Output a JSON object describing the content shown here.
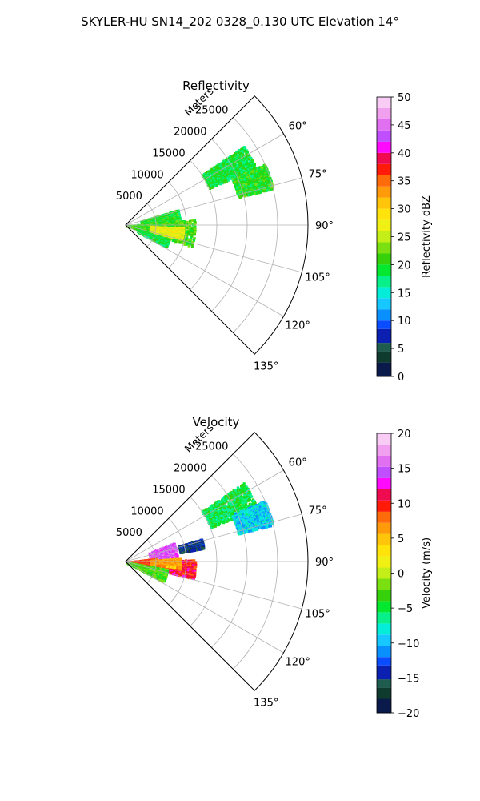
{
  "figure": {
    "suptitle": "SKYLER-HU  SN14_202  0328_0.130 UTC Elevation 14°"
  },
  "chart_data": [
    {
      "type": "heatmap",
      "subtype": "polar-sector (PPI radar scan)",
      "title": "Reflectivity",
      "radial_axis_label": "Meters",
      "radial_ticks": [
        "5000",
        "10000",
        "15000",
        "20000",
        "25000"
      ],
      "radial_tick_values": [
        5000,
        10000,
        15000,
        20000,
        25000
      ],
      "radial_max": 30000,
      "angle_ticks": [
        "60°",
        "75°",
        "90°",
        "105°",
        "120°",
        "135°"
      ],
      "angle_tick_values": [
        60,
        75,
        90,
        105,
        120,
        135
      ],
      "angle_range_deg": [
        45,
        135
      ],
      "grid": true,
      "colorbar": {
        "label": "Reflectivity dBZ",
        "vmin": 0,
        "vmax": 50,
        "ticks": [
          "0",
          "5",
          "10",
          "15",
          "20",
          "25",
          "30",
          "35",
          "40",
          "45",
          "50"
        ],
        "tick_values": [
          0,
          5,
          10,
          15,
          20,
          25,
          30,
          35,
          40,
          45,
          50
        ],
        "colormap_stops": [
          [
            0.0,
            "#0a1a4a"
          ],
          [
            0.05,
            "#0f3b2e"
          ],
          [
            0.09,
            "#1f5c50"
          ],
          [
            0.12,
            "#0b1fb0"
          ],
          [
            0.17,
            "#0a4cff"
          ],
          [
            0.2,
            "#0a8fff"
          ],
          [
            0.24,
            "#16c8ff"
          ],
          [
            0.28,
            "#05ecd8"
          ],
          [
            0.32,
            "#08f08a"
          ],
          [
            0.36,
            "#05e830"
          ],
          [
            0.4,
            "#35d10a"
          ],
          [
            0.44,
            "#7ae012"
          ],
          [
            0.48,
            "#c4ee18"
          ],
          [
            0.52,
            "#f0f015"
          ],
          [
            0.56,
            "#ffe30a"
          ],
          [
            0.6,
            "#ffc50a"
          ],
          [
            0.64,
            "#ff9a0a"
          ],
          [
            0.68,
            "#ff6a0a"
          ],
          [
            0.72,
            "#ff1a0a"
          ],
          [
            0.76,
            "#f00a50"
          ],
          [
            0.8,
            "#ff0aff"
          ],
          [
            0.84,
            "#c050ff"
          ],
          [
            0.88,
            "#e070f0"
          ],
          [
            0.92,
            "#f0a0ee"
          ],
          [
            0.96,
            "#f8ccf5"
          ],
          [
            1.0,
            "#fbeefb"
          ]
        ]
      },
      "echo_regions": [
        {
          "az": [
            73,
            85
          ],
          "r": [
            2500,
            9000
          ],
          "value": 20
        },
        {
          "az": [
            85,
            108
          ],
          "r": [
            0,
            11500
          ],
          "value": 21
        },
        {
          "az": [
            92,
            104
          ],
          "r": [
            4000,
            9500
          ],
          "value": 27
        },
        {
          "az": [
            108,
            118
          ],
          "r": [
            2000,
            7500
          ],
          "value": 19
        },
        {
          "az": [
            56,
            66
          ],
          "r": [
            15000,
            23500
          ],
          "value": 19
        },
        {
          "az": [
            66,
            76
          ],
          "r": [
            19000,
            25000
          ],
          "value": 20
        }
      ]
    },
    {
      "type": "heatmap",
      "subtype": "polar-sector (PPI radar scan)",
      "title": "Velocity",
      "radial_axis_label": "Meters",
      "radial_ticks": [
        "5000",
        "10000",
        "15000",
        "20000",
        "25000"
      ],
      "radial_tick_values": [
        5000,
        10000,
        15000,
        20000,
        25000
      ],
      "radial_max": 30000,
      "angle_ticks": [
        "60°",
        "75°",
        "90°",
        "105°",
        "120°",
        "135°"
      ],
      "angle_tick_values": [
        60,
        75,
        90,
        105,
        120,
        135
      ],
      "angle_range_deg": [
        45,
        135
      ],
      "grid": true,
      "colorbar": {
        "label": "Velocity (m/s)",
        "vmin": -20,
        "vmax": 20,
        "ticks": [
          "−20",
          "−15",
          "−10",
          "−5",
          "0",
          "5",
          "10",
          "15",
          "20"
        ],
        "tick_values": [
          -20,
          -15,
          -10,
          -5,
          0,
          5,
          10,
          15,
          20
        ],
        "colormap_stops": [
          [
            0.0,
            "#0a1a4a"
          ],
          [
            0.05,
            "#0f3b2e"
          ],
          [
            0.09,
            "#1f5c50"
          ],
          [
            0.12,
            "#0b1fb0"
          ],
          [
            0.17,
            "#0a4cff"
          ],
          [
            0.2,
            "#0a8fff"
          ],
          [
            0.24,
            "#16c8ff"
          ],
          [
            0.28,
            "#05ecd8"
          ],
          [
            0.32,
            "#08f08a"
          ],
          [
            0.36,
            "#05e830"
          ],
          [
            0.4,
            "#35d10a"
          ],
          [
            0.44,
            "#7ae012"
          ],
          [
            0.48,
            "#c4ee18"
          ],
          [
            0.52,
            "#f0f015"
          ],
          [
            0.56,
            "#ffe30a"
          ],
          [
            0.6,
            "#ffc50a"
          ],
          [
            0.64,
            "#ff9a0a"
          ],
          [
            0.68,
            "#ff6a0a"
          ],
          [
            0.72,
            "#ff1a0a"
          ],
          [
            0.76,
            "#f00a50"
          ],
          [
            0.8,
            "#ff0aff"
          ],
          [
            0.84,
            "#c050ff"
          ],
          [
            0.88,
            "#e070f0"
          ],
          [
            0.92,
            "#f0a0ee"
          ],
          [
            0.96,
            "#f8ccf5"
          ],
          [
            1.0,
            "#fbeefb"
          ]
        ]
      },
      "echo_regions": [
        {
          "az": [
            68,
            85
          ],
          "r": [
            4000,
            8500
          ],
          "value": 15
        },
        {
          "az": [
            83,
            100
          ],
          "r": [
            0,
            5000
          ],
          "value": 9
        },
        {
          "az": [
            88,
            104
          ],
          "r": [
            4000,
            11500
          ],
          "value": 10
        },
        {
          "az": [
            86,
            96
          ],
          "r": [
            4000,
            9000
          ],
          "value": 6
        },
        {
          "az": [
            100,
            118
          ],
          "r": [
            0,
            7000
          ],
          "value": -3
        },
        {
          "az": [
            56,
            68
          ],
          "r": [
            15000,
            23500
          ],
          "value": -5
        },
        {
          "az": [
            66,
            76
          ],
          "r": [
            19000,
            25000
          ],
          "value": -9
        },
        {
          "az": [
            73,
            80
          ],
          "r": [
            9000,
            13000
          ],
          "value": -15
        }
      ]
    }
  ]
}
